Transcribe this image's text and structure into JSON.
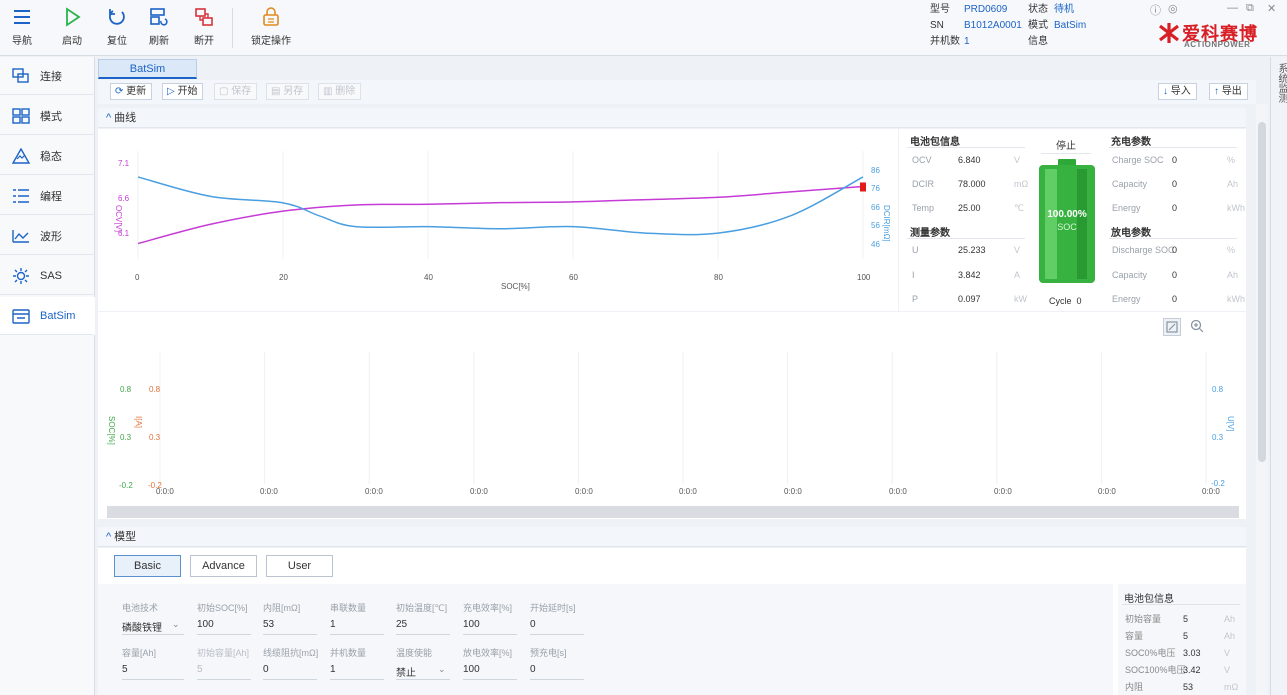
{
  "toolbar": {
    "buttons": [
      {
        "label": "导航"
      },
      {
        "label": "启动"
      },
      {
        "label": "复位"
      },
      {
        "label": "刷新"
      },
      {
        "label": "断开"
      },
      {
        "label": "锁定操作"
      }
    ]
  },
  "device": {
    "model_label": "型号",
    "model_value": "PRD0609",
    "sn_label": "SN",
    "sn_value": "B1012A0001",
    "parallel_label": "并机数",
    "parallel_value": "1",
    "state_label": "状态",
    "state_value": "待机",
    "mode_label": "模式",
    "mode_value": "BatSim",
    "info_label": "信息"
  },
  "brand": {
    "name_cn": "爱科赛博",
    "name_en": "ACTIONPOWER",
    "color": "#d81f26"
  },
  "sidebar": {
    "items": [
      {
        "label": "连接",
        "icon": "connect-icon"
      },
      {
        "label": "模式",
        "icon": "grid-icon"
      },
      {
        "label": "稳态",
        "icon": "triangle-icon"
      },
      {
        "label": "编程",
        "icon": "list-icon"
      },
      {
        "label": "波形",
        "icon": "wave-icon"
      },
      {
        "label": "SAS",
        "icon": "sun-icon"
      },
      {
        "label": "BatSim",
        "icon": "battery-icon"
      }
    ]
  },
  "right_strip": {
    "label": "系统监测"
  },
  "tab": {
    "label": "BatSim"
  },
  "subbar": {
    "update": "更新",
    "start": "开始",
    "b3": "保存",
    "b4": "另存",
    "b5": "删除",
    "import": "导入",
    "export": "导出"
  },
  "curve": {
    "title": "曲线",
    "y_left_label": "OCV[V]",
    "y_right_label": "DCIR[mΩ]",
    "x_label": "SOC[%]",
    "x_ticks": [
      "0",
      "20",
      "40",
      "60",
      "80",
      "100"
    ],
    "y_left_ticks": [
      "7.1",
      "6.6",
      "6.1"
    ],
    "y_right_ticks": [
      "86",
      "76",
      "66",
      "56",
      "46"
    ]
  },
  "chart_data": {
    "type": "line",
    "xlabel": "SOC[%]",
    "xlim": [
      0,
      100
    ],
    "series": [
      {
        "name": "OCV[V]",
        "axis": "left",
        "color": "#c63ad6",
        "x": [
          0,
          10,
          20,
          30,
          40,
          50,
          60,
          70,
          80,
          90,
          100
        ],
        "y": [
          6.1,
          6.35,
          6.52,
          6.6,
          6.61,
          6.63,
          6.64,
          6.67,
          6.7,
          6.77,
          6.84
        ]
      },
      {
        "name": "DCIR[mΩ]",
        "axis": "right",
        "color": "#4a9fe0",
        "x": [
          0,
          10,
          20,
          25,
          30,
          40,
          50,
          60,
          70,
          80,
          90,
          100
        ],
        "y": [
          78,
          69,
          66,
          60,
          55,
          55,
          54,
          55,
          52,
          52,
          60,
          78
        ]
      }
    ],
    "ylim_left": [
      5.9,
      7.3
    ],
    "ylim_right": [
      40,
      90
    ]
  },
  "battery": {
    "section1": "电池包信息",
    "rows1": [
      {
        "k": "OCV",
        "v": "6.840",
        "u": "V"
      },
      {
        "k": "DCIR",
        "v": "78.000",
        "u": "mΩ"
      },
      {
        "k": "Temp",
        "v": "25.00",
        "u": "℃"
      }
    ],
    "section2": "测量参数",
    "rows2": [
      {
        "k": "U",
        "v": "25.233",
        "u": "V"
      },
      {
        "k": "I",
        "v": "3.842",
        "u": "A"
      },
      {
        "k": "P",
        "v": "0.097",
        "u": "kW"
      }
    ],
    "status": "停止",
    "soc_value": "100.00%",
    "soc_label": "SOC",
    "cycle_label": "Cycle",
    "cycle_value": "0",
    "charge_title": "充电参数",
    "charge_rows": [
      {
        "k": "Charge SOC",
        "v": "0",
        "u": "%"
      },
      {
        "k": "Capacity",
        "v": "0",
        "u": "Ah"
      },
      {
        "k": "Energy",
        "v": "0",
        "u": "kWh"
      }
    ],
    "discharge_title": "放电参数",
    "discharge_rows": [
      {
        "k": "Discharge SOC",
        "v": "0",
        "u": "%"
      },
      {
        "k": "Capacity",
        "v": "0",
        "u": "Ah"
      },
      {
        "k": "Energy",
        "v": "0",
        "u": "kWh"
      }
    ]
  },
  "wave": {
    "y_left1": "SOC[%]",
    "y_left2": "I[A]",
    "y_right": "U[V]",
    "ticks_soc": [
      "0.8",
      "0.3",
      "-0.2"
    ],
    "ticks_i": [
      "0.8",
      "0.3",
      "-0.2"
    ],
    "ticks_r": [
      "0.8",
      "0.3",
      "-0.2"
    ],
    "x_ticks": [
      "0:0:0",
      "0:0:0",
      "0:0:0",
      "0:0:0",
      "0:0:0",
      "0:0:0",
      "0:0:0",
      "0:0:0",
      "0:0:0",
      "0:0:0",
      "0:0:0"
    ]
  },
  "model": {
    "title": "模型",
    "tabs": [
      "Basic",
      "Advance",
      "User"
    ],
    "row1": [
      {
        "label": "电池技术",
        "value": "磷酸铁锂",
        "dropdown": true
      },
      {
        "label": "初始SOC[%]",
        "value": "100"
      },
      {
        "label": "内阻[mΩ]",
        "value": "53"
      },
      {
        "label": "串联数量",
        "value": "1"
      },
      {
        "label": "初始温度[℃]",
        "value": "25"
      },
      {
        "label": "充电效率[%]",
        "value": "100"
      },
      {
        "label": "开始延时[s]",
        "value": "0"
      }
    ],
    "row2": [
      {
        "label": "容量[Ah]",
        "value": "5"
      },
      {
        "label": "初始容量[Ah]",
        "value": "5",
        "disabled": true
      },
      {
        "label": "线缆阻抗[mΩ]",
        "value": "0"
      },
      {
        "label": "并机数量",
        "value": "1"
      },
      {
        "label": "温度使能",
        "value": "禁止",
        "dropdown": true
      },
      {
        "label": "放电效率[%]",
        "value": "100"
      },
      {
        "label": "预充电[s]",
        "value": "0"
      }
    ],
    "pack_title": "电池包信息",
    "pack_rows": [
      {
        "k": "初始容量",
        "v": "5",
        "u": "Ah"
      },
      {
        "k": "容量",
        "v": "5",
        "u": "Ah"
      },
      {
        "k": "SOC0%电压",
        "v": "3.03",
        "u": "V"
      },
      {
        "k": "SOC100%电压",
        "v": "3.42",
        "u": "V"
      },
      {
        "k": "内阻",
        "v": "53",
        "u": "mΩ"
      }
    ]
  }
}
